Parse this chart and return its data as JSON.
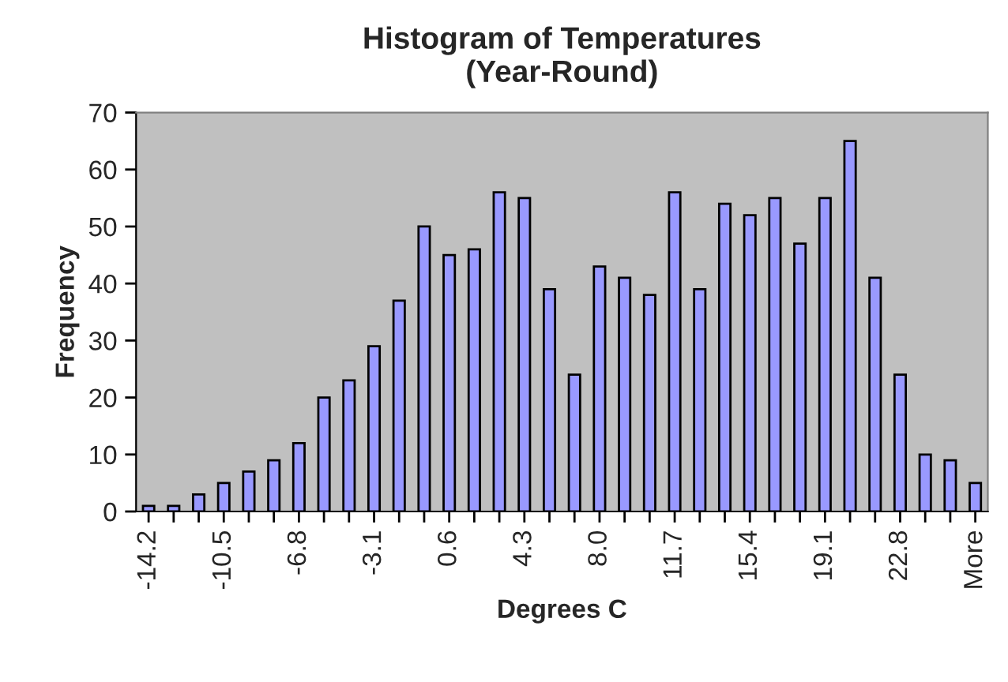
{
  "chart_data": {
    "type": "bar",
    "title": "Histogram of Temperatures\n(Year-Round)",
    "xlabel": "Degrees C",
    "ylabel": "Frequency",
    "categories": [
      "-14.2",
      null,
      null,
      "-10.5",
      null,
      null,
      "-6.8",
      null,
      null,
      "-3.1",
      null,
      null,
      "0.6",
      null,
      null,
      "4.3",
      null,
      null,
      "8.0",
      null,
      null,
      "11.7",
      null,
      null,
      "15.4",
      null,
      null,
      "19.1",
      null,
      null,
      "22.8",
      null,
      null,
      "More"
    ],
    "values": [
      1,
      1,
      3,
      5,
      7,
      9,
      12,
      20,
      23,
      29,
      37,
      50,
      45,
      46,
      56,
      55,
      39,
      24,
      43,
      41,
      38,
      56,
      39,
      54,
      52,
      55,
      47,
      55,
      65,
      41,
      24,
      10,
      9,
      5
    ],
    "color": "#9999ff",
    "ylim": [
      0,
      70
    ],
    "yticks": [
      0,
      10,
      20,
      30,
      40,
      50,
      60,
      70
    ],
    "grid": false,
    "legend": false
  }
}
